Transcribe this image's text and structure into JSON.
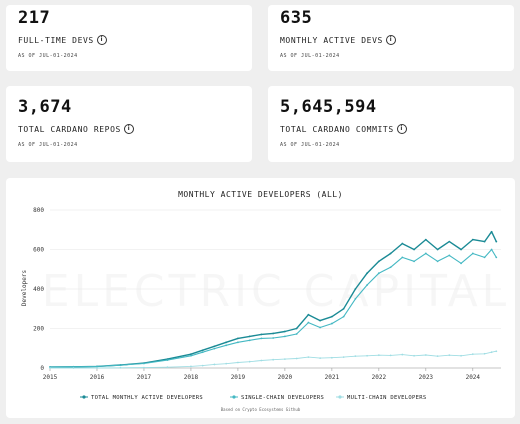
{
  "stats": [
    {
      "value": "217",
      "label": "FULL-TIME DEVS",
      "date": "AS OF JUL-01-2024"
    },
    {
      "value": "635",
      "label": "MONTHLY ACTIVE DEVS",
      "date": "AS OF JUL-01-2024"
    },
    {
      "value": "3,674",
      "label": "TOTAL CARDANO REPOS",
      "date": "AS OF JUL-01-2024"
    },
    {
      "value": "5,645,594",
      "label": "TOTAL CARDANO COMMITS",
      "date": "AS OF JUL-01-2024"
    }
  ],
  "icons": {
    "info": "info-icon",
    "legend_marker": "dot-line-icon"
  },
  "colors": {
    "total": "#1a8a95",
    "single": "#44b8c3",
    "multi": "#9fdde3",
    "background": "#efefef",
    "card": "#ffffff"
  },
  "chart_data": {
    "type": "line",
    "title": "MONTHLY ACTIVE DEVELOPERS (ALL)",
    "xlabel": "",
    "ylabel": "Developers",
    "watermark": "ELECTRIC CAPITAL",
    "source": "Based on Crypto Ecosystems Github",
    "xlim": [
      2015,
      2024.6
    ],
    "ylim": [
      0,
      800
    ],
    "y_ticks": [
      0,
      200,
      400,
      600,
      800
    ],
    "x_ticks": [
      2015,
      2016,
      2017,
      2018,
      2019,
      2020,
      2021,
      2022,
      2023,
      2024
    ],
    "grid": true,
    "legend_position": "bottom",
    "x": [
      2015.0,
      2015.5,
      2016.0,
      2016.5,
      2017.0,
      2017.5,
      2018.0,
      2018.25,
      2018.5,
      2018.75,
      2019.0,
      2019.25,
      2019.5,
      2019.75,
      2020.0,
      2020.25,
      2020.5,
      2020.75,
      2021.0,
      2021.25,
      2021.5,
      2021.75,
      2022.0,
      2022.25,
      2022.5,
      2022.75,
      2023.0,
      2023.25,
      2023.5,
      2023.75,
      2024.0,
      2024.25,
      2024.4,
      2024.5
    ],
    "series": [
      {
        "name": "TOTAL MONTHLY ACTIVE DEVELOPERS",
        "values": [
          5,
          6,
          8,
          15,
          25,
          45,
          70,
          90,
          110,
          130,
          150,
          160,
          170,
          175,
          185,
          200,
          270,
          240,
          260,
          300,
          400,
          480,
          540,
          580,
          630,
          600,
          650,
          600,
          640,
          600,
          650,
          640,
          690,
          640
        ]
      },
      {
        "name": "SINGLE-CHAIN DEVELOPERS",
        "values": [
          5,
          6,
          8,
          14,
          23,
          40,
          62,
          80,
          98,
          115,
          130,
          140,
          150,
          152,
          160,
          172,
          230,
          205,
          225,
          260,
          350,
          420,
          480,
          510,
          560,
          540,
          580,
          540,
          570,
          530,
          580,
          560,
          600,
          560
        ]
      },
      {
        "name": "MULTI-CHAIN DEVELOPERS",
        "values": [
          0,
          0,
          0,
          1,
          2,
          4,
          8,
          12,
          18,
          22,
          28,
          32,
          38,
          42,
          45,
          48,
          55,
          50,
          52,
          55,
          60,
          62,
          65,
          64,
          68,
          62,
          66,
          60,
          65,
          62,
          70,
          72,
          80,
          85
        ]
      }
    ]
  }
}
